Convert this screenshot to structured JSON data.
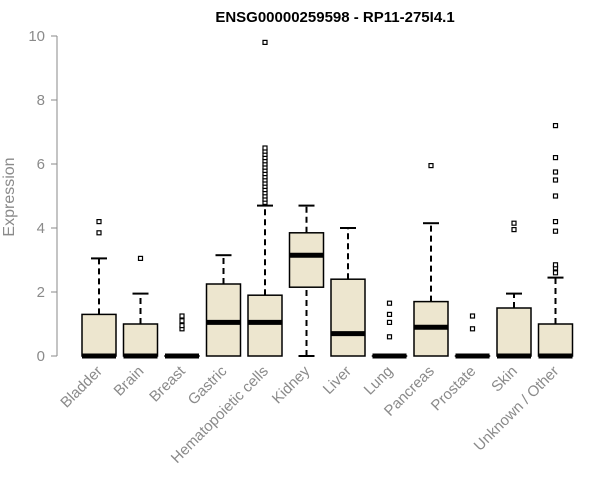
{
  "chart_data": {
    "type": "box",
    "title": "ENSG00000259598 - RP11-275I4.1",
    "ylabel": "Expression",
    "xlabel": "",
    "ylim": [
      0,
      10
    ],
    "yticks": [
      0,
      2,
      4,
      6,
      8,
      10
    ],
    "grid": false,
    "colors": {
      "box_fill": "#ede6cf",
      "box_stroke": "#000000",
      "axis": "#8a8a8a"
    },
    "categories": [
      "Bladder",
      "Brain",
      "Breast",
      "Gastric",
      "Hematopoietic cells",
      "Kidney",
      "Liver",
      "Lung",
      "Pancreas",
      "Prostate",
      "Skin",
      "Unknown / Other"
    ],
    "boxes": [
      {
        "category": "Bladder",
        "whisker_low": 0,
        "q1": 0,
        "median": 0,
        "q3": 1.3,
        "whisker_high": 3.05,
        "outliers": [
          3.85,
          4.2
        ]
      },
      {
        "category": "Brain",
        "whisker_low": 0,
        "q1": 0,
        "median": 0,
        "q3": 1.0,
        "whisker_high": 1.95,
        "outliers": [
          3.05
        ]
      },
      {
        "category": "Breast",
        "whisker_low": 0,
        "q1": 0,
        "median": 0,
        "q3": 0,
        "whisker_high": 0,
        "outliers": [
          0.85,
          0.95,
          1.1,
          1.25
        ]
      },
      {
        "category": "Gastric",
        "whisker_low": 0,
        "q1": 0,
        "median": 1.05,
        "q3": 2.25,
        "whisker_high": 3.15,
        "outliers": []
      },
      {
        "category": "Hematopoietic cells",
        "whisker_low": 0,
        "q1": 0,
        "median": 1.05,
        "q3": 1.9,
        "whisker_high": 4.7,
        "outliers": [
          4.8,
          4.9,
          5.0,
          5.1,
          5.2,
          5.3,
          5.4,
          5.5,
          5.6,
          5.7,
          5.8,
          5.9,
          6.0,
          6.1,
          6.2,
          6.3,
          6.4,
          6.5,
          9.8
        ]
      },
      {
        "category": "Kidney",
        "whisker_low": 0,
        "q1": 2.15,
        "median": 3.15,
        "q3": 3.85,
        "whisker_high": 4.7,
        "outliers": []
      },
      {
        "category": "Liver",
        "whisker_low": 0,
        "q1": 0,
        "median": 0.7,
        "q3": 2.4,
        "whisker_high": 4.0,
        "outliers": []
      },
      {
        "category": "Lung",
        "whisker_low": 0,
        "q1": 0,
        "median": 0,
        "q3": 0,
        "whisker_high": 0,
        "outliers": [
          0.6,
          1.05,
          1.3,
          1.65
        ]
      },
      {
        "category": "Pancreas",
        "whisker_low": 0,
        "q1": 0,
        "median": 0.9,
        "q3": 1.7,
        "whisker_high": 4.15,
        "outliers": [
          5.95
        ]
      },
      {
        "category": "Prostate",
        "whisker_low": 0,
        "q1": 0,
        "median": 0,
        "q3": 0,
        "whisker_high": 0,
        "outliers": [
          0.85,
          1.25
        ]
      },
      {
        "category": "Skin",
        "whisker_low": 0,
        "q1": 0,
        "median": 0,
        "q3": 1.5,
        "whisker_high": 1.95,
        "outliers": [
          3.95,
          4.15
        ]
      },
      {
        "category": "Unknown / Other",
        "whisker_low": 0,
        "q1": 0,
        "median": 0,
        "q3": 1.0,
        "whisker_high": 2.45,
        "outliers": [
          2.6,
          2.75,
          2.85,
          3.9,
          4.2,
          5.0,
          5.5,
          5.75,
          6.2,
          7.2
        ]
      }
    ]
  }
}
